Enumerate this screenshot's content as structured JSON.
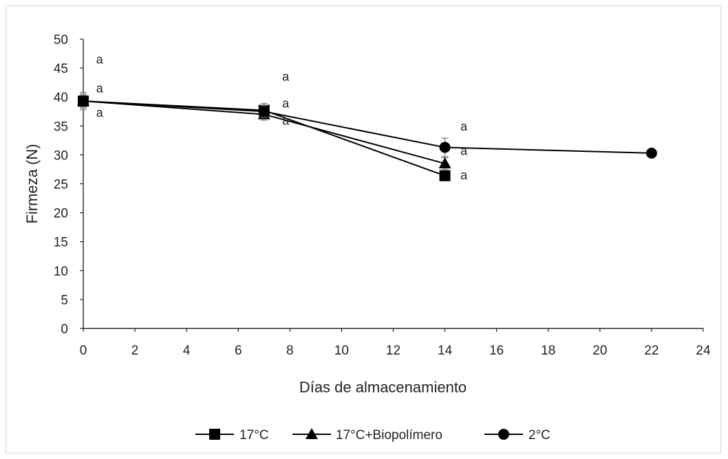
{
  "chart_data": {
    "type": "line",
    "title": "",
    "xlabel": "Días de almacenamiento",
    "ylabel": "Firmeza (N)",
    "xlim": [
      0,
      24
    ],
    "ylim": [
      0,
      50
    ],
    "xticks": [
      0,
      2,
      4,
      6,
      8,
      10,
      12,
      14,
      16,
      18,
      20,
      22,
      24
    ],
    "yticks": [
      0,
      5,
      10,
      15,
      20,
      25,
      30,
      35,
      40,
      45,
      50
    ],
    "grid": false,
    "legend_position": "bottom",
    "series": [
      {
        "name": "17°C",
        "marker": "square",
        "color": "#000000",
        "x": [
          0,
          7,
          14
        ],
        "y": [
          39.3,
          37.7,
          26.4
        ],
        "error": [
          1.5,
          1.2,
          0.7
        ]
      },
      {
        "name": "17°C+Biopolímero",
        "marker": "triangle",
        "color": "#000000",
        "x": [
          0,
          7,
          14
        ],
        "y": [
          39.3,
          37.0,
          28.5
        ],
        "error": [
          1.2,
          1.0,
          1.0
        ]
      },
      {
        "name": "2°C",
        "marker": "circle",
        "color": "#000000",
        "x": [
          0,
          7,
          14,
          22
        ],
        "y": [
          39.3,
          37.5,
          31.3,
          30.3
        ],
        "error": [
          1.0,
          1.0,
          1.6,
          0
        ]
      }
    ],
    "annotations": [
      {
        "text": "a",
        "x": 0.5,
        "y": 46.5
      },
      {
        "text": "a",
        "x": 0.5,
        "y": 41.5
      },
      {
        "text": "a",
        "x": 0.5,
        "y": 37.3
      },
      {
        "text": "a",
        "x": 7.7,
        "y": 43.5
      },
      {
        "text": "a",
        "x": 7.7,
        "y": 38.9
      },
      {
        "text": "a",
        "x": 7.7,
        "y": 35.9
      },
      {
        "text": "a",
        "x": 14.6,
        "y": 34.9
      },
      {
        "text": "a",
        "x": 14.6,
        "y": 30.7
      },
      {
        "text": "a",
        "x": 14.6,
        "y": 26.5
      }
    ]
  }
}
